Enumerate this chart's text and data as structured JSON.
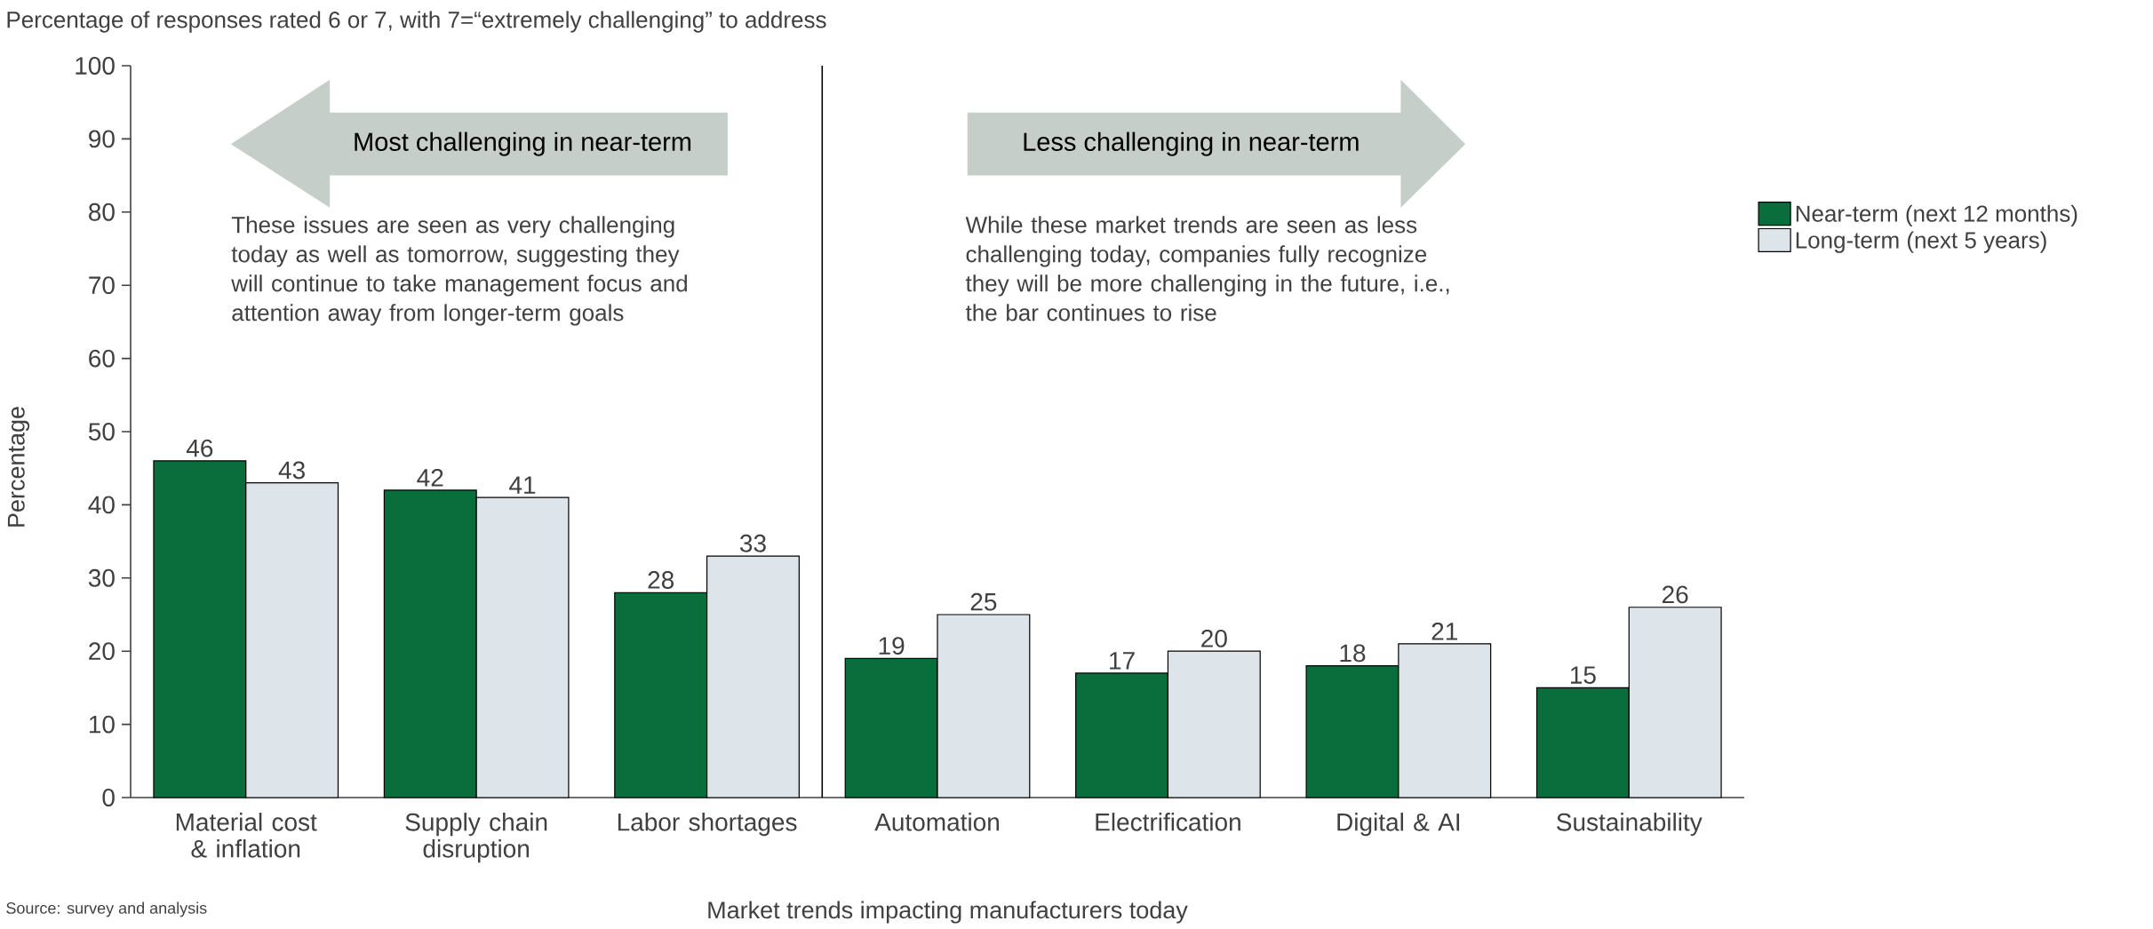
{
  "chart_data": {
    "type": "bar",
    "title": "Percentage of responses rated 6 or 7, with 7=“extremely challenging”  to address",
    "xlabel": "Market trends impacting manufacturers today",
    "ylabel": "Percentage",
    "categories": [
      "Material cost & inflation",
      "Supply chain disruption",
      "Labor shortages",
      "Automation",
      "Electrification",
      "Digital & AI",
      "Sustainability"
    ],
    "series": [
      {
        "name": "Near-term (next 12 months)",
        "color": "#0a6e3c",
        "values": [
          46,
          42,
          28,
          19,
          17,
          18,
          15
        ]
      },
      {
        "name": "Long-term (next 5 years)",
        "color": "#dde4ea",
        "values": [
          43,
          41,
          33,
          25,
          20,
          21,
          26
        ]
      }
    ],
    "ylim": [
      0,
      100
    ],
    "yticks": [
      0,
      10,
      20,
      30,
      40,
      50,
      60,
      70,
      80,
      90,
      100
    ],
    "data_labels": true,
    "legend": "right",
    "annotations": [
      "Most challenging in near-term",
      "These issues are seen as very challenging today as well as tomorrow, suggesting they will continue to take management focus and attention away from longer-term goals",
      "Less challenging in near-term",
      "While these market trends are seen as less challenging today, companies fully recognize they will be more challenging in the future, i.e., the bar continues to rise",
      "Source: survey and analysis"
    ]
  }
}
